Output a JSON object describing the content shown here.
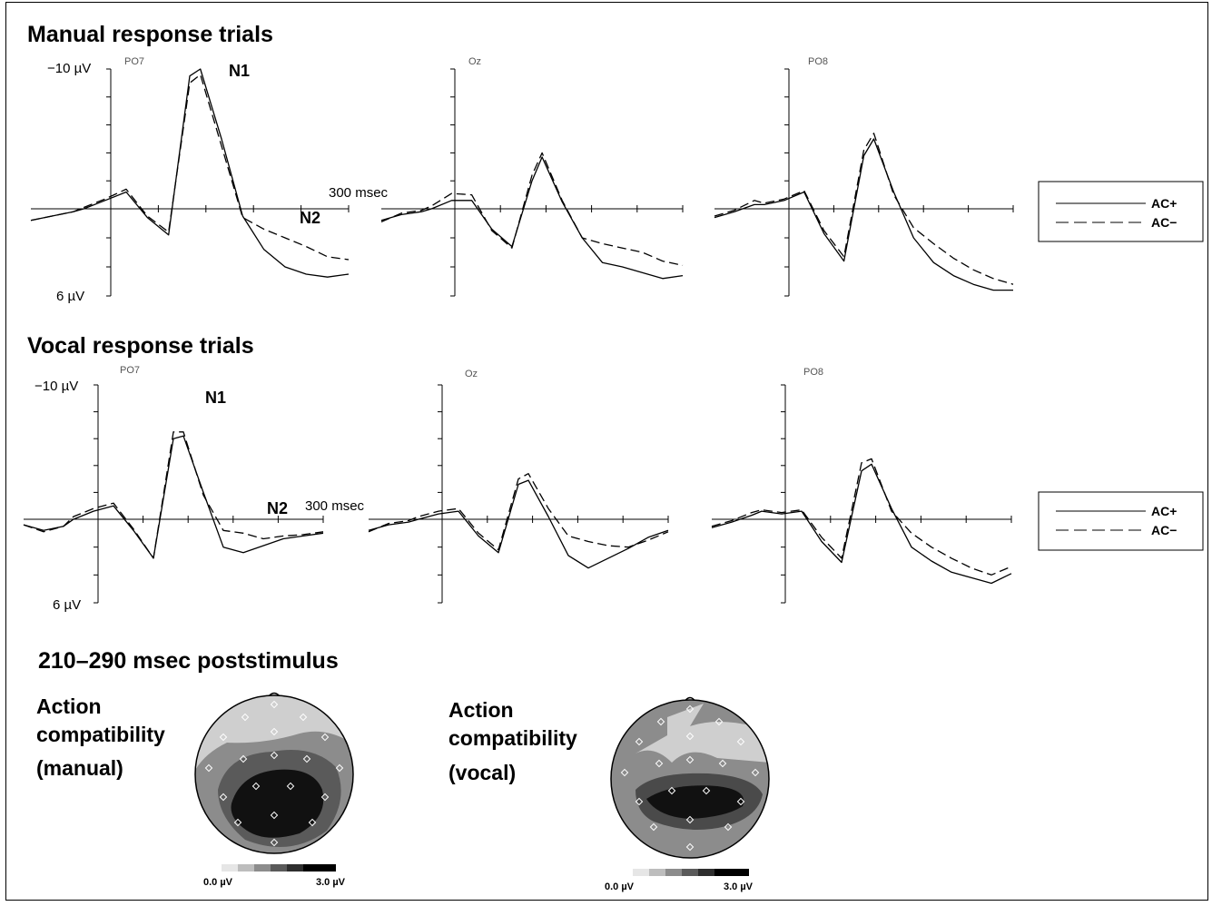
{
  "sections": {
    "manual_title": "Manual response trials",
    "vocal_title": "Vocal response trials",
    "topo_title": "210–290 msec poststimulus"
  },
  "axis": {
    "ytop_label": "−10 µV",
    "ybottom_label": "6 µV",
    "time_label": "300 msec"
  },
  "peaks": {
    "n1": "N1",
    "n2": "N2"
  },
  "legend": [
    {
      "label": "AC+",
      "style": "solid"
    },
    {
      "label": "AC−",
      "style": "dashed"
    }
  ],
  "topomaps": [
    {
      "label_lines": [
        "Action",
        "compatibility",
        "(manual)"
      ],
      "scale_min": "0.0 µV",
      "scale_max": "3.0 µV"
    },
    {
      "label_lines": [
        "Action",
        "compatibility",
        "(vocal)"
      ],
      "scale_min": "0.0 µV",
      "scale_max": "3.0 µV"
    }
  ],
  "colors": {
    "line": "#000000",
    "topo_light": "#cfcfcf",
    "topo_mid": "#8c8c8c",
    "topo_dark": "#4a4a4a",
    "topo_darkest": "#111111"
  },
  "chart_data": [
    {
      "type": "line",
      "group": "Manual response trials",
      "channel": "PO7",
      "ylim": [
        -10,
        6
      ],
      "y_inverted": true,
      "xlim": [
        -100,
        500
      ],
      "series": [
        {
          "name": "AC+",
          "x": [
            -100,
            -60,
            -20,
            0,
            40,
            80,
            120,
            160,
            200,
            220,
            260,
            300,
            340,
            380,
            420,
            460,
            500
          ],
          "y": [
            0.8,
            0.5,
            0.2,
            0,
            -0.6,
            -1.2,
            0.6,
            1.8,
            -9.5,
            -10,
            -5,
            0.5,
            2.8,
            4.0,
            4.5,
            4.7,
            4.5
          ]
        },
        {
          "name": "AC−",
          "x": [
            -100,
            -60,
            -20,
            0,
            40,
            80,
            120,
            160,
            200,
            220,
            260,
            300,
            340,
            380,
            420,
            460,
            500
          ],
          "y": [
            0.8,
            0.5,
            0.2,
            -0.1,
            -0.7,
            -1.4,
            0.5,
            1.6,
            -9.0,
            -9.6,
            -4.5,
            0.6,
            1.4,
            2.0,
            2.6,
            3.3,
            3.5
          ]
        }
      ]
    },
    {
      "type": "line",
      "group": "Manual response trials",
      "channel": "Oz",
      "ylim": [
        -10,
        6
      ],
      "y_inverted": true,
      "xlim": [
        -100,
        500
      ],
      "series": [
        {
          "name": "AC+",
          "x": [
            -100,
            -60,
            -20,
            0,
            40,
            80,
            120,
            160,
            200,
            220,
            260,
            300,
            340,
            380,
            420,
            460,
            500
          ],
          "y": [
            0.8,
            0.4,
            0.2,
            0,
            -0.6,
            -0.6,
            1.4,
            2.6,
            -2.0,
            -3.7,
            -0.5,
            2.0,
            3.7,
            4.0,
            4.4,
            4.8,
            4.6
          ]
        },
        {
          "name": "AC−",
          "x": [
            -100,
            -60,
            -20,
            0,
            40,
            80,
            120,
            160,
            200,
            220,
            260,
            300,
            340,
            380,
            420,
            460,
            500
          ],
          "y": [
            0.9,
            0.3,
            0.1,
            -0.2,
            -1.1,
            -1.0,
            1.5,
            2.7,
            -2.4,
            -4.0,
            -0.6,
            2.0,
            2.4,
            2.7,
            3.0,
            3.6,
            3.9
          ]
        }
      ]
    },
    {
      "type": "line",
      "group": "Manual response trials",
      "channel": "PO8",
      "ylim": [
        -10,
        6
      ],
      "y_inverted": true,
      "xlim": [
        -100,
        500
      ],
      "series": [
        {
          "name": "AC+",
          "x": [
            -100,
            -60,
            -20,
            0,
            40,
            80,
            120,
            160,
            200,
            220,
            260,
            300,
            340,
            380,
            420,
            460,
            500
          ],
          "y": [
            0.6,
            0.2,
            -0.3,
            -0.3,
            -0.6,
            -1.2,
            1.7,
            3.6,
            -3.8,
            -5.0,
            -1.2,
            2.0,
            3.7,
            4.6,
            5.2,
            5.6,
            5.6
          ]
        },
        {
          "name": "AC−",
          "x": [
            -100,
            -60,
            -20,
            0,
            40,
            80,
            120,
            160,
            200,
            220,
            260,
            300,
            340,
            380,
            420,
            460,
            500
          ],
          "y": [
            0.5,
            0.1,
            -0.6,
            -0.4,
            -0.7,
            -1.3,
            1.5,
            3.3,
            -4.2,
            -5.4,
            -1.0,
            1.3,
            2.4,
            3.4,
            4.2,
            4.8,
            5.2
          ]
        }
      ]
    },
    {
      "type": "line",
      "group": "Vocal response trials",
      "channel": "PO7",
      "ylim": [
        -10,
        6
      ],
      "y_inverted": true,
      "xlim": [
        -100,
        500
      ],
      "series": [
        {
          "name": "AC+",
          "x": [
            -100,
            -60,
            -20,
            0,
            40,
            80,
            120,
            160,
            200,
            220,
            260,
            300,
            340,
            380,
            420,
            460,
            500
          ],
          "y": [
            0.4,
            0.8,
            0.5,
            0,
            -0.6,
            -1.0,
            0.8,
            2.8,
            -6.0,
            -6.2,
            -2.0,
            2.0,
            2.4,
            1.9,
            1.4,
            1.2,
            1.0
          ]
        },
        {
          "name": "AC−",
          "x": [
            -100,
            -60,
            -20,
            0,
            40,
            80,
            120,
            160,
            200,
            220,
            260,
            300,
            340,
            380,
            420,
            460,
            500
          ],
          "y": [
            0.4,
            0.9,
            0.5,
            -0.2,
            -0.8,
            -1.2,
            0.7,
            2.8,
            -6.5,
            -6.5,
            -1.8,
            0.8,
            1.0,
            1.4,
            1.2,
            1.1,
            0.9
          ]
        }
      ]
    },
    {
      "type": "line",
      "group": "Vocal response trials",
      "channel": "Oz",
      "ylim": [
        -10,
        6
      ],
      "y_inverted": true,
      "xlim": [
        -100,
        500
      ],
      "series": [
        {
          "name": "AC+",
          "x": [
            -100,
            -60,
            -20,
            0,
            40,
            80,
            120,
            160,
            200,
            220,
            260,
            300,
            340,
            380,
            420,
            460,
            500
          ],
          "y": [
            0.8,
            0.4,
            0.2,
            0,
            -0.4,
            -0.6,
            1.2,
            2.4,
            -2.6,
            -2.9,
            -0.2,
            2.6,
            3.5,
            2.8,
            2.1,
            1.3,
            0.8
          ]
        },
        {
          "name": "AC−",
          "x": [
            -100,
            -60,
            -20,
            0,
            40,
            80,
            120,
            160,
            200,
            220,
            260,
            300,
            340,
            380,
            420,
            460,
            500
          ],
          "y": [
            0.9,
            0.3,
            0.1,
            -0.2,
            -0.6,
            -0.8,
            1.0,
            2.2,
            -3.0,
            -3.4,
            -0.8,
            1.2,
            1.6,
            1.9,
            2.0,
            1.5,
            0.9
          ]
        }
      ]
    },
    {
      "type": "line",
      "group": "Vocal response trials",
      "channel": "PO8",
      "ylim": [
        -10,
        6
      ],
      "y_inverted": true,
      "xlim": [
        -100,
        500
      ],
      "series": [
        {
          "name": "AC+",
          "x": [
            -100,
            -60,
            -20,
            0,
            40,
            80,
            120,
            160,
            200,
            220,
            260,
            300,
            340,
            380,
            420,
            460,
            500
          ],
          "y": [
            0.6,
            0.2,
            -0.3,
            -0.6,
            -0.4,
            -0.6,
            1.6,
            3.1,
            -3.6,
            -4.1,
            -0.8,
            2.0,
            3.0,
            3.8,
            4.2,
            4.6,
            3.9
          ]
        },
        {
          "name": "AC−",
          "x": [
            -100,
            -60,
            -20,
            0,
            40,
            80,
            120,
            160,
            200,
            220,
            260,
            300,
            340,
            380,
            420,
            460,
            500
          ],
          "y": [
            0.5,
            0.1,
            -0.5,
            -0.7,
            -0.5,
            -0.7,
            1.3,
            2.8,
            -4.2,
            -4.5,
            -0.6,
            1.0,
            2.0,
            2.8,
            3.5,
            4.0,
            3.4
          ]
        }
      ]
    }
  ]
}
